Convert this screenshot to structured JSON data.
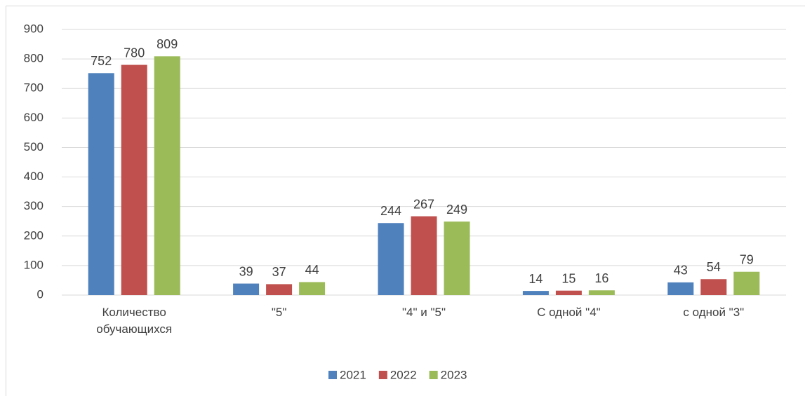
{
  "chart_data": {
    "type": "bar",
    "categories": [
      "Количество обучающихся",
      "\"5\"",
      "\"4\" и \"5\"",
      "С одной \"4\"",
      "с одной \"3\""
    ],
    "series": [
      {
        "name": "2021",
        "color": "#4f81bd",
        "values": [
          752,
          39,
          244,
          14,
          43
        ]
      },
      {
        "name": "2022",
        "color": "#c0504d",
        "values": [
          780,
          37,
          267,
          15,
          54
        ]
      },
      {
        "name": "2023",
        "color": "#9bbb59",
        "values": [
          809,
          44,
          249,
          16,
          79
        ]
      }
    ],
    "ylim": [
      0,
      900
    ],
    "yticks": [
      0,
      100,
      200,
      300,
      400,
      500,
      600,
      700,
      800,
      900
    ],
    "grid": true,
    "legend": "bottom"
  }
}
